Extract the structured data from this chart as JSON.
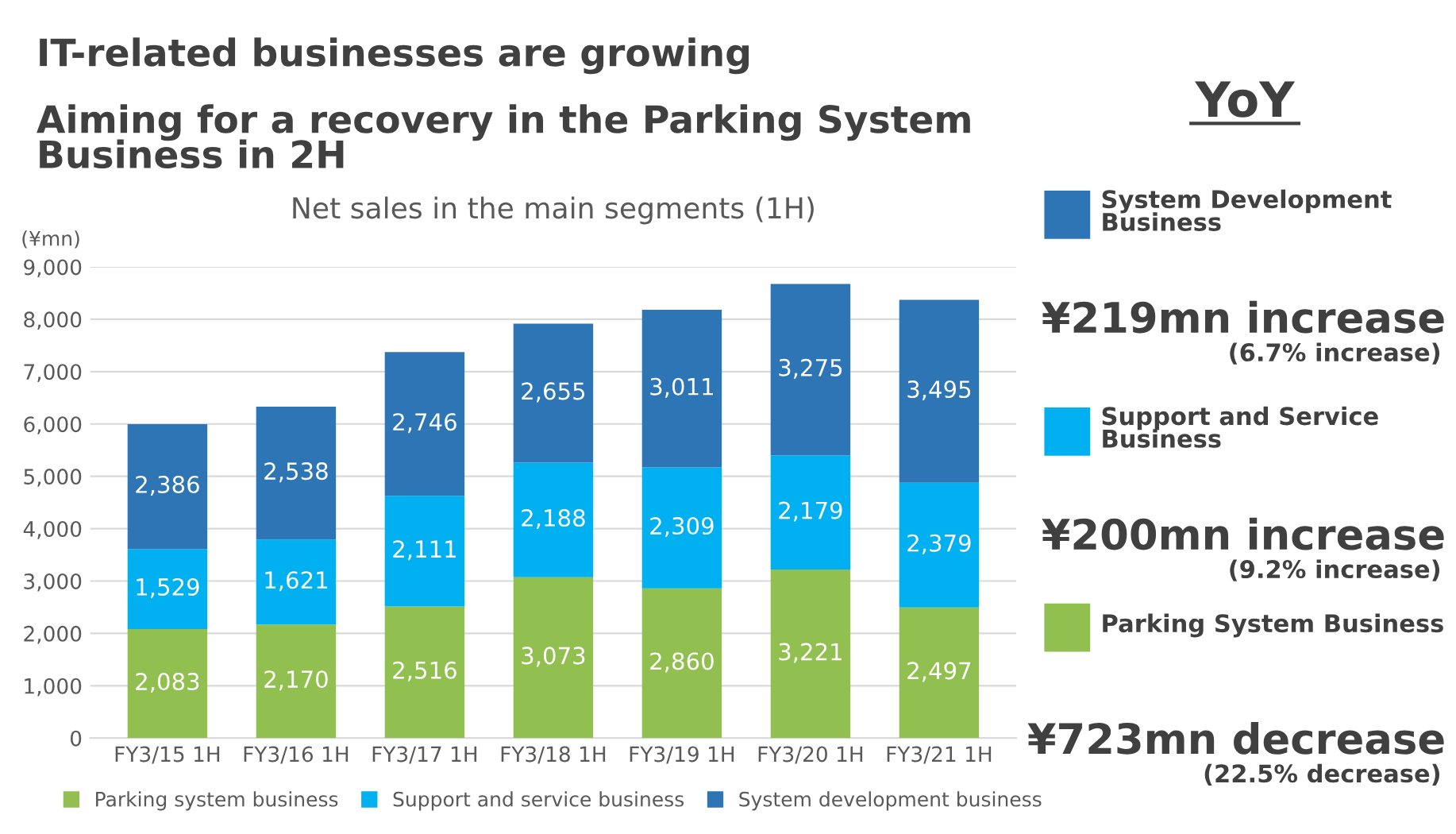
{
  "chart_data": [
    {
      "type": "bar",
      "stacked": true,
      "title": "Net sales in the main segments (1H)",
      "ylabel": "(¥mn)",
      "annotations": [
        "IT-related businesses are growing",
        "Aiming for a recovery in the Parking System\nBusiness in 2H"
      ],
      "categories": [
        "FY3/15 1H",
        "FY3/16 1H",
        "FY3/17 1H",
        "FY3/18 1H",
        "FY3/19 1H",
        "FY3/20 1H",
        "FY3/21 1H"
      ],
      "series": [
        {
          "name": "Parking system business",
          "color": "#92c050",
          "values": [
            2083,
            2170,
            2516,
            3073,
            2860,
            3221,
            2497
          ],
          "value_labels": [
            "2,083",
            "2,170",
            "2,516",
            "3,073",
            "2,860",
            "3,221",
            "2,497"
          ]
        },
        {
          "name": "Support and service business",
          "color": "#00b0f0",
          "values": [
            1529,
            1621,
            2111,
            2188,
            2309,
            2179,
            2379
          ],
          "value_labels": [
            "1,529",
            "1,621",
            "2,111",
            "2,188",
            "2,309",
            "2,179",
            "2,379"
          ]
        },
        {
          "name": "System development business",
          "color": "#2e75b6",
          "values": [
            2386,
            2538,
            2746,
            2655,
            3011,
            3275,
            3495
          ],
          "value_labels": [
            "2,386",
            "2,538",
            "2,746",
            "2,655",
            "3,011",
            "3,275",
            "3,495"
          ]
        }
      ],
      "ylim": [
        0,
        9000
      ],
      "yticks": [
        {
          "value": 0,
          "label": "0"
        },
        {
          "value": 1000,
          "label": "1,000"
        },
        {
          "value": 2000,
          "label": "2,000"
        },
        {
          "value": 3000,
          "label": "3,000"
        },
        {
          "value": 4000,
          "label": "4,000"
        },
        {
          "value": 5000,
          "label": "5,000"
        },
        {
          "value": 6000,
          "label": "6,000"
        },
        {
          "value": 7000,
          "label": "7,000"
        },
        {
          "value": 8000,
          "label": "8,000"
        },
        {
          "value": 9000,
          "label": "9,000"
        }
      ],
      "grid": "y",
      "legend": "bottom"
    },
    {
      "type": "other",
      "title": "YoY",
      "colors": [
        "#2e75b6",
        "#00b0f0",
        "#92c050"
      ],
      "annotations": [
        "System Development\nBusiness",
        "¥219mn increase",
        "(6.7% increase)",
        "Support and Service\nBusiness",
        "¥200mn increase",
        "(9.2% increase)",
        "Parking System Business",
        "¥723mn decrease",
        "(22.5% decrease)"
      ]
    }
  ]
}
